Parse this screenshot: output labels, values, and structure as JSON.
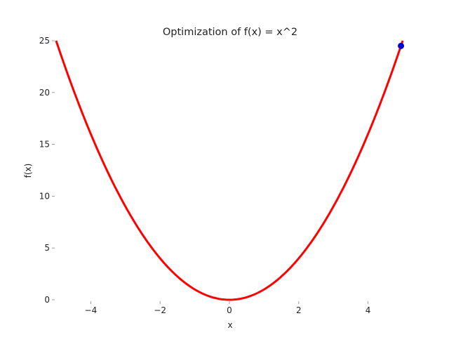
{
  "chart_data": {
    "type": "line",
    "title": "Optimization of f(x) = x^2",
    "xlabel": "x",
    "ylabel": "f(x)",
    "xlim": [
      -5,
      5
    ],
    "ylim": [
      0,
      25
    ],
    "x_ticks": [
      -4,
      -2,
      0,
      2,
      4
    ],
    "x_tick_labels": [
      "−4",
      "−2",
      "0",
      "2",
      "4"
    ],
    "y_ticks": [
      0,
      5,
      10,
      15,
      20,
      25
    ],
    "y_tick_labels": [
      "0",
      "5",
      "10",
      "15",
      "20",
      "25"
    ],
    "grid": false,
    "series": [
      {
        "function": "x^2",
        "x_range": [
          -5,
          5
        ],
        "samples": 201,
        "color": "#ff0000"
      }
    ],
    "points": [
      {
        "x": 4.95,
        "y": 24.5,
        "color": "#0000cc"
      }
    ]
  }
}
